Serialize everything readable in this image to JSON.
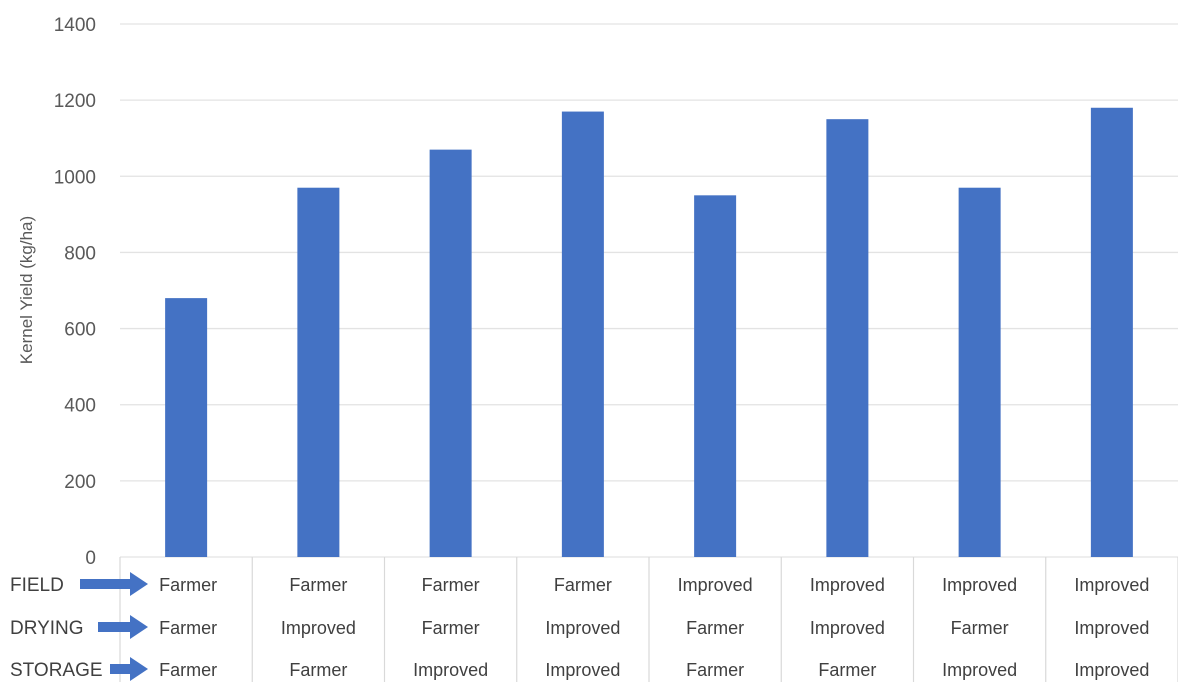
{
  "chart_data": {
    "type": "bar",
    "ylabel": "Kernel Yield (kg/ha)",
    "ylim": [
      0,
      1400
    ],
    "yticks": [
      0,
      200,
      400,
      600,
      800,
      1000,
      1200,
      1400
    ],
    "grid": true,
    "bar_color": "#4472C4",
    "arrow_color": "#4472C4",
    "rows": [
      {
        "label": "FIELD",
        "values": [
          "Farmer",
          "Farmer",
          "Farmer",
          "Farmer",
          "Improved",
          "Improved",
          "Improved",
          "Improved"
        ]
      },
      {
        "label": "DRYING",
        "values": [
          "Farmer",
          "Improved",
          "Farmer",
          "Improved",
          "Farmer",
          "Improved",
          "Farmer",
          "Improved"
        ]
      },
      {
        "label": "STORAGE",
        "values": [
          "Farmer",
          "Farmer",
          "Improved",
          "Improved",
          "Farmer",
          "Farmer",
          "Improved",
          "Improved"
        ]
      }
    ],
    "values": [
      680,
      970,
      1070,
      1170,
      950,
      1150,
      970,
      1180
    ]
  }
}
